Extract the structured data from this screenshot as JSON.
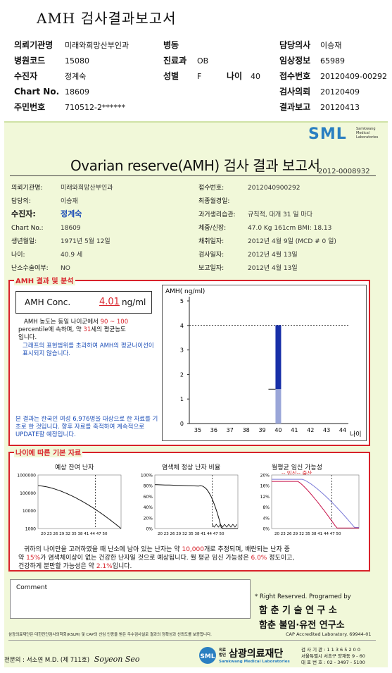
{
  "header": {
    "title": "AMH 검사결과보고서",
    "left": [
      {
        "k": "의뢰기관명",
        "v": "미래와희망산부인과"
      },
      {
        "k": "병원코드",
        "v": "15080"
      },
      {
        "k": "수진자",
        "v": "정계숙"
      },
      {
        "k": "Chart No.",
        "v": "18609"
      },
      {
        "k": "주민번호",
        "v": "710512-2******"
      }
    ],
    "mid": [
      {
        "k": "병동",
        "v": ""
      },
      {
        "k": "진료과",
        "v": "OB"
      },
      {
        "k": "성별",
        "v": "F"
      }
    ],
    "age_k": "나이",
    "age_v": "40",
    "right": [
      {
        "k": "담당의사",
        "v": "이승재"
      },
      {
        "k": "임상정보",
        "v": "65989"
      },
      {
        "k": "접수번호",
        "v": "20120409-00292"
      },
      {
        "k": "검사의뢰",
        "v": "20120409"
      },
      {
        "k": "결과보고",
        "v": "20120413"
      }
    ]
  },
  "brand": {
    "logo": "SML",
    "sub1": "Samkwang",
    "sub2": "Medical",
    "sub3": "Laboratories"
  },
  "report": {
    "title": "Ovarian reserve(AMH) 검사 결과 보고서",
    "number": "2012-0008932",
    "left": [
      {
        "k": "의뢰기관명:",
        "v": "미래와희망산부인과"
      },
      {
        "k": "담당의:",
        "v": "이승재"
      },
      {
        "k": "수진자:",
        "v": "정계숙"
      },
      {
        "k": "Chart No.:",
        "v": "18609"
      },
      {
        "k": "생년월일:",
        "v": "1971년 5월 12일"
      },
      {
        "k": "나이:",
        "v": "40.9 세"
      },
      {
        "k": "난소수술여부:",
        "v": "NO"
      }
    ],
    "right": [
      {
        "k": "접수번호:",
        "v": "2012040900292"
      },
      {
        "k": "최종월경일:",
        "v": ""
      },
      {
        "k": "과거생리습관:",
        "v": "규칙적,  대개    31 일 마다"
      },
      {
        "k": "체중/신장:",
        "v": "47.0 Kg    161cm     BMI:  18.13"
      },
      {
        "k": "채취일자:",
        "v": "2012년 4월 9일    (MCD # 0 일)"
      },
      {
        "k": "검사일자:",
        "v": "2012년 4월 13일"
      },
      {
        "k": "보고일자:",
        "v": "2012년 4월 13일"
      }
    ]
  },
  "amh": {
    "section_label": "AMH 결과 및 분석",
    "conc_label": "AMH Conc.",
    "conc_value": "4.01",
    "conc_unit": "ng/ml",
    "desc1a": "AMH 농도는 동일 나이군에서",
    "desc1b": "90 ~ 100",
    "desc1c": "percentile에 속하며, 약",
    "desc1d": "31",
    "desc1e": "세의 평균농도",
    "desc1f": "입니다.",
    "desc2": "그래프의 표현범위를 초과하여 AMH의 평균나이선이 표시되지 않습니다.",
    "note": "본 결과는 한국인 여성 6,976명을 대상으로 한 자료를 기초로 한 것입니다. 향후 자료를 축적하여 계속적으로 UPDATE할 예정입니다."
  },
  "chart_data": [
    {
      "type": "bar",
      "title": "",
      "ylabel": "AMH( ng/ml)",
      "xlabel": "나이",
      "x_ticks": [
        "35",
        "36",
        "37",
        "38",
        "39",
        "40",
        "41",
        "42",
        "43",
        "44"
      ],
      "y_ticks": [
        "0",
        "1",
        "2",
        "3",
        "4",
        "5"
      ],
      "ylim": [
        0,
        5
      ],
      "bar": {
        "x": "40",
        "value": 4.01,
        "upper": 4.01,
        "lower": 1.4
      },
      "reference_line": 4.01
    }
  ],
  "age_section": {
    "label": "나이에 따른 기본 자료",
    "c1_title": "예상 잔여 난자",
    "c1_y": [
      "1000000",
      "100000",
      "10000",
      "1000"
    ],
    "c2_title": "염색체 정상 난자 비율",
    "c2_y": [
      "100%",
      "80%",
      "60%",
      "40%",
      "20%",
      "0%"
    ],
    "c3_title": "월평균 임신 가능성",
    "c3_legend": "-- 임신--  출산",
    "c3_y": [
      "20%",
      "16%",
      "12%",
      "8%",
      "4%",
      "0%"
    ],
    "x_ticks": "20 23 26 29 32 35 38 41 44 47 50",
    "summary1a": "귀하의 나이만을 고려하였을 때 난소에 남아 있는 난자는 약",
    "summary1b": "10,000",
    "summary1c": "개로 추정되며, 배란되는 난자 중",
    "summary2a": "약",
    "summary2b": "15%",
    "summary2c": "가 염색체이상이 없는 건강한 난자일 것으로 예상됩니다. 월 평균 임신 가능성은",
    "summary2d": "6.0%",
    "summary2e": "정도이고,",
    "summary3a": "건강하게 분만할 가능성은 약",
    "summary3b": "2.1%",
    "summary3c": "입니다."
  },
  "comment": {
    "label": "Comment"
  },
  "rights": {
    "line1": "* Right Reserved. Programed by",
    "line2": "함 춘  기 술  연 구 소",
    "line3": "함춘 불임·유전 연구소"
  },
  "footer": {
    "cert": "삼광의료재단은 대한진단검사의학회(KSLM) 및 CAP의 신임 인증을 받은 우수검사실로 결과의 정확성과 신뢰도를 보증합니다.",
    "cap": "CAP  Accredited  Laboratory.  69944-01",
    "doctor": "전문의 : 서소연 M.D. (제 711호)",
    "signature": "Soyeon Seo",
    "org": "삼광의료재단",
    "org_en": "Samkwang Medical Laboratories",
    "org_tag": "의료 법인",
    "contact1": "검 사 기 관 : 1 1 3 6 5 2 0 0",
    "contact2": "서울특별시 서초구 양재동 9 - 60",
    "contact3": "대 표 번 호 : 02 - 3497 - 5100"
  },
  "colors": {
    "accent": "#d8222a",
    "blue": "#1f50b8",
    "bar": "#1830a8",
    "sheet": "#f1f8d9",
    "logo": "#2a7fc1"
  }
}
